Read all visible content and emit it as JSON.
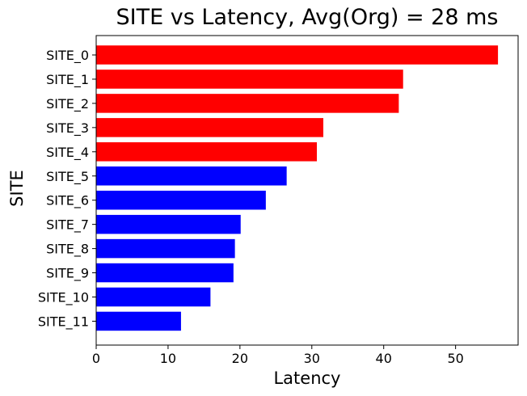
{
  "chart_data": {
    "type": "bar",
    "orientation": "horizontal",
    "title": "SITE vs Latency, Avg(Org) = 28 ms",
    "xlabel": "Latency",
    "ylabel": "SITE",
    "categories": [
      "SITE_0",
      "SITE_1",
      "SITE_2",
      "SITE_3",
      "SITE_4",
      "SITE_5",
      "SITE_6",
      "SITE_7",
      "SITE_8",
      "SITE_9",
      "SITE_10",
      "SITE_11"
    ],
    "values": [
      55.9,
      42.7,
      42.1,
      31.6,
      30.7,
      26.5,
      23.6,
      20.1,
      19.3,
      19.1,
      15.9,
      11.8
    ],
    "bar_colors": [
      "#ff0000",
      "#ff0000",
      "#ff0000",
      "#ff0000",
      "#ff0000",
      "#0000ff",
      "#0000ff",
      "#0000ff",
      "#0000ff",
      "#0000ff",
      "#0000ff",
      "#0000ff"
    ],
    "xlim": [
      0,
      58.7
    ],
    "xticks": [
      0,
      10,
      20,
      30,
      40,
      50
    ],
    "xtick_labels": [
      "0",
      "10",
      "20",
      "30",
      "40",
      "50"
    ],
    "grid": false,
    "legend": "none"
  }
}
